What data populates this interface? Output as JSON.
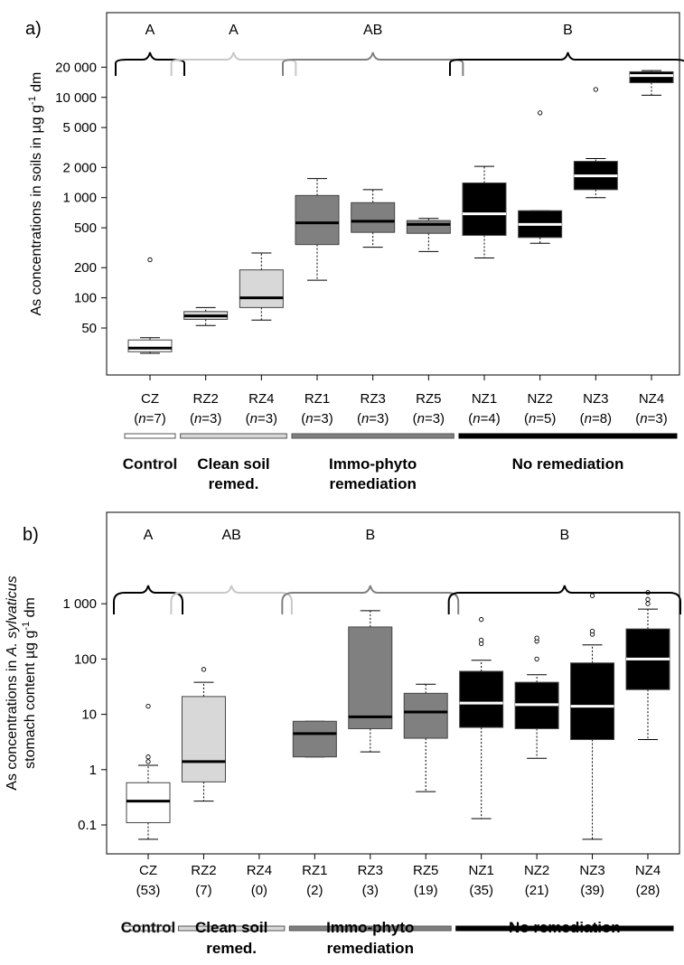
{
  "colors": {
    "Control": "#ffffff",
    "Clean soil remed.": "#d8d8d8",
    "Immo-phyto remediation": "#808080",
    "No remediation": "#000000"
  },
  "chart_data": [
    {
      "panel_label": "a)",
      "type": "boxplot",
      "y_scale": "log",
      "ylabel_parts": [
        "As concentrations in soils in µg g",
        "-1",
        " dm"
      ],
      "y_ticks": [
        {
          "v": 50,
          "label": "50"
        },
        {
          "v": 100,
          "label": "100"
        },
        {
          "v": 200,
          "label": "200"
        },
        {
          "v": 500,
          "label": "500"
        },
        {
          "v": 1000,
          "label": "1 000"
        },
        {
          "v": 2000,
          "label": "2 000"
        },
        {
          "v": 5000,
          "label": "5 000"
        },
        {
          "v": 10000,
          "label": "10 000"
        },
        {
          "v": 20000,
          "label": "20 000"
        }
      ],
      "ylim": [
        17,
        70000
      ],
      "categories": [
        {
          "name": "CZ",
          "n": "7",
          "group": "Control",
          "min": 28,
          "q1": 29,
          "median": 31.5,
          "q3": 38,
          "max": 40,
          "outliers": [
            240
          ]
        },
        {
          "name": "RZ2",
          "n": "3",
          "group": "Clean soil remed.",
          "min": 53,
          "q1": 61,
          "median": 66,
          "q3": 73,
          "max": 80
        },
        {
          "name": "RZ4",
          "n": "3",
          "group": "Clean soil remed.",
          "min": 60,
          "q1": 80,
          "median": 100,
          "q3": 190,
          "max": 280
        },
        {
          "name": "RZ1",
          "n": "3",
          "group": "Immo-phyto remediation",
          "min": 150,
          "q1": 340,
          "median": 560,
          "q3": 1050,
          "max": 1550
        },
        {
          "name": "RZ3",
          "n": "3",
          "group": "Immo-phyto remediation",
          "min": 320,
          "q1": 450,
          "median": 580,
          "q3": 890,
          "max": 1200
        },
        {
          "name": "RZ5",
          "n": "3",
          "group": "Immo-phyto remediation",
          "min": 290,
          "q1": 440,
          "median": 540,
          "q3": 590,
          "max": 620
        },
        {
          "name": "NZ1",
          "n": "4",
          "group": "No remediation",
          "min": 250,
          "q1": 420,
          "median": 690,
          "q3": 1400,
          "max": 2050
        },
        {
          "name": "NZ2",
          "n": "5",
          "group": "No remediation",
          "min": 350,
          "q1": 400,
          "median": 540,
          "q3": 740,
          "max": 740,
          "outliers": [
            7000
          ]
        },
        {
          "name": "NZ3",
          "n": "8",
          "group": "No remediation",
          "min": 1000,
          "q1": 1200,
          "median": 1650,
          "q3": 2300,
          "max": 2450,
          "outliers": [
            12000
          ]
        },
        {
          "name": "NZ4",
          "n": "3",
          "group": "No remediation",
          "min": 10500,
          "q1": 14000,
          "median": 16500,
          "q3": 18000,
          "max": 18500
        }
      ],
      "groups": [
        {
          "name": "Control",
          "letter": "A",
          "display": [
            "Control"
          ],
          "from": "CZ",
          "to": "CZ"
        },
        {
          "name": "Clean soil remed.",
          "letter": "A",
          "display": [
            "Clean soil",
            "remed."
          ],
          "from": "RZ2",
          "to": "RZ4"
        },
        {
          "name": "Immo-phyto remediation",
          "letter": "AB",
          "display": [
            "Immo-phyto",
            "remediation"
          ],
          "from": "RZ1",
          "to": "RZ5"
        },
        {
          "name": "No remediation",
          "letter": "B",
          "display": [
            "No remediation"
          ],
          "from": "NZ1",
          "to": "NZ4"
        }
      ]
    },
    {
      "panel_label": "b)",
      "type": "boxplot",
      "y_scale": "log",
      "ylabel_parts": [
        "As concentrations in ",
        "A. sylvaticus",
        "stomach content µg g",
        "-1",
        " dm"
      ],
      "y_ticks": [
        {
          "v": 0.1,
          "label": "0.1"
        },
        {
          "v": 1,
          "label": "1"
        },
        {
          "v": 10,
          "label": "10"
        },
        {
          "v": 100,
          "label": "100"
        },
        {
          "v": 1000,
          "label": "1 000"
        }
      ],
      "ylim": [
        0.03,
        45000
      ],
      "categories": [
        {
          "name": "CZ",
          "n": "53",
          "group": "Control",
          "min": 0.055,
          "q1": 0.11,
          "median": 0.27,
          "q3": 0.58,
          "max": 1.2,
          "outliers": [
            1.4,
            1.7,
            14
          ]
        },
        {
          "name": "RZ2",
          "n": "7",
          "group": "Clean soil remed.",
          "min": 0.27,
          "q1": 0.6,
          "median": 1.4,
          "q3": 21,
          "max": 38,
          "outliers": [
            65
          ]
        },
        {
          "name": "RZ4",
          "n": "0",
          "group": "Clean soil remed."
        },
        {
          "name": "RZ1",
          "n": "2",
          "group": "Immo-phyto remediation",
          "min": 1.7,
          "q1": 1.7,
          "median": 4.5,
          "q3": 7.5,
          "max": 7.5
        },
        {
          "name": "RZ3",
          "n": "3",
          "group": "Immo-phyto remediation",
          "min": 2.1,
          "q1": 5.5,
          "median": 9,
          "q3": 380,
          "max": 750
        },
        {
          "name": "RZ5",
          "n": "19",
          "group": "Immo-phyto remediation",
          "min": 0.4,
          "q1": 3.7,
          "median": 11,
          "q3": 24,
          "max": 35
        },
        {
          "name": "NZ1",
          "n": "35",
          "group": "No remediation",
          "min": 0.13,
          "q1": 5.8,
          "median": 16,
          "q3": 60,
          "max": 95,
          "outliers": [
            190,
            220,
            520
          ]
        },
        {
          "name": "NZ2",
          "n": "21",
          "group": "No remediation",
          "min": 1.6,
          "q1": 5.5,
          "median": 15,
          "q3": 38,
          "max": 52,
          "outliers": [
            100,
            210,
            240
          ]
        },
        {
          "name": "NZ3",
          "n": "39",
          "group": "No remediation",
          "min": 0.055,
          "q1": 3.5,
          "median": 14,
          "q3": 85,
          "max": 180,
          "outliers": [
            280,
            320,
            1400
          ]
        },
        {
          "name": "NZ4",
          "n": "28",
          "group": "No remediation",
          "min": 3.5,
          "q1": 28,
          "median": 100,
          "q3": 350,
          "max": 800,
          "outliers": [
            1000,
            1200,
            1600
          ]
        }
      ],
      "groups": [
        {
          "name": "Control",
          "letter": "A",
          "display": [
            "Control"
          ],
          "from": "CZ",
          "to": "CZ"
        },
        {
          "name": "Clean soil remed.",
          "letter": "AB",
          "display": [
            "Clean soil",
            "remed."
          ],
          "from": "RZ2",
          "to": "RZ4"
        },
        {
          "name": "Immo-phyto remediation",
          "letter": "B",
          "display": [
            "Immo-phyto",
            "remediation"
          ],
          "from": "RZ1",
          "to": "RZ5"
        },
        {
          "name": "No remediation",
          "letter": "B",
          "display": [
            "No remediation"
          ],
          "from": "NZ1",
          "to": "NZ4"
        }
      ]
    }
  ]
}
